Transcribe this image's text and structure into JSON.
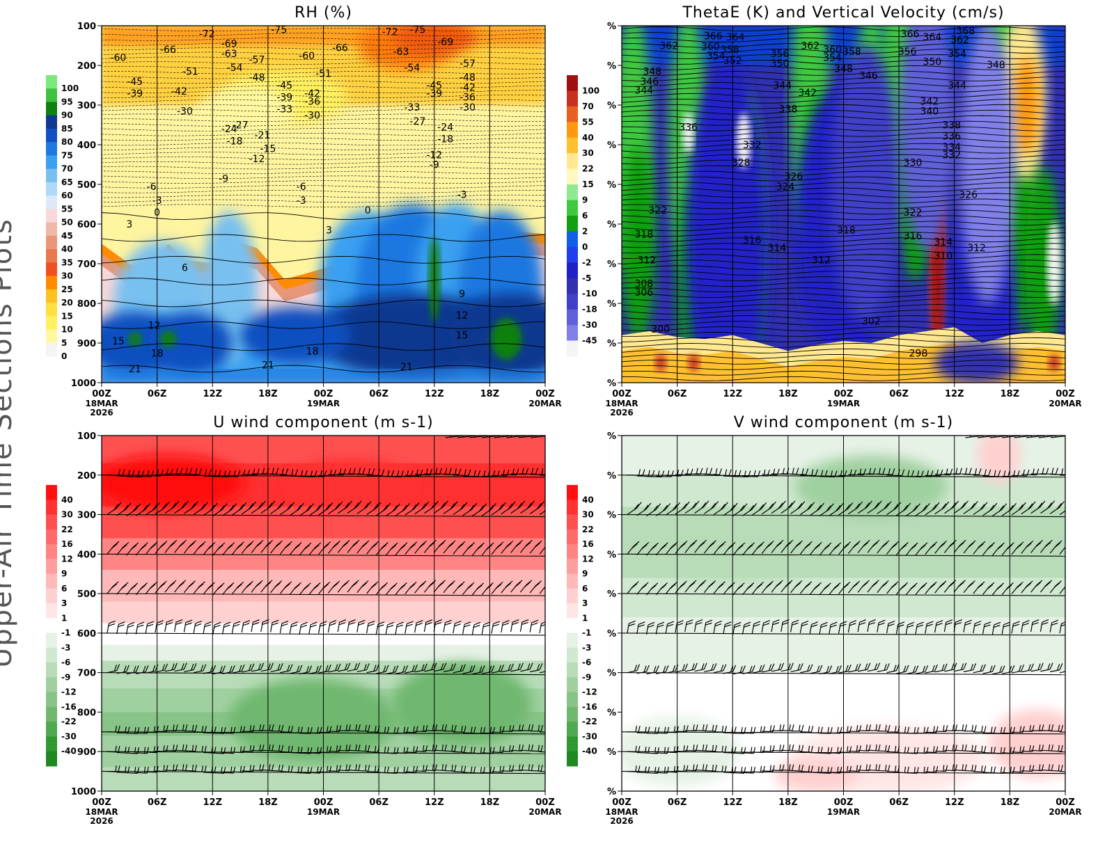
{
  "figure": {
    "side_title": "Upper-Air Time Sections Plots",
    "time_ticks": [
      "00Z",
      "06Z",
      "12Z",
      "18Z",
      "00Z",
      "06Z",
      "12Z",
      "18Z",
      "00Z"
    ],
    "date_labels": [
      {
        "tick": 0,
        "lines": [
          "18MAR",
          "2026"
        ]
      },
      {
        "tick": 4,
        "lines": [
          "19MAR"
        ]
      },
      {
        "tick": 8,
        "lines": [
          "20MAR"
        ]
      }
    ]
  },
  "chart_data": [
    {
      "id": "rh",
      "type": "heatmap",
      "title": "RH (%)",
      "y_ticks": [
        "100",
        "200",
        "300",
        "400",
        "500",
        "600",
        "700",
        "800",
        "900",
        "1000"
      ],
      "ylim": [
        100,
        1000
      ],
      "colorbar": {
        "labels": [
          "100",
          "95",
          "90",
          "85",
          "80",
          "75",
          "70",
          "65",
          "60",
          "55",
          "50",
          "45",
          "40",
          "35",
          "30",
          "25",
          "20",
          "15",
          "10",
          "5",
          "0"
        ],
        "colors": [
          "#7de87d",
          "#40c040",
          "#108010",
          "#103890",
          "#1050c0",
          "#1f78e0",
          "#3aa0f0",
          "#78c0f0",
          "#b0d8f8",
          "#dce8f8",
          "#f8d8d8",
          "#f0b8a8",
          "#e89878",
          "#e87850",
          "#f05020",
          "#ff8c00",
          "#ffc020",
          "#ffe040",
          "#fff060",
          "#fff8a0",
          "#f4f4f4"
        ]
      },
      "contour_labels": [
        {
          "t": 0.3,
          "p": 180,
          "v": "-60"
        },
        {
          "t": 1.2,
          "p": 160,
          "v": "-66"
        },
        {
          "t": 1.9,
          "p": 120,
          "v": "-72"
        },
        {
          "t": 2.3,
          "p": 145,
          "v": "-69"
        },
        {
          "t": 3.2,
          "p": 110,
          "v": "-75"
        },
        {
          "t": 2.3,
          "p": 170,
          "v": "-63"
        },
        {
          "t": 2.8,
          "p": 185,
          "v": "-57"
        },
        {
          "t": 2.4,
          "p": 205,
          "v": "-54"
        },
        {
          "t": 2.8,
          "p": 230,
          "v": "-48"
        },
        {
          "t": 1.6,
          "p": 215,
          "v": "-51"
        },
        {
          "t": 0.6,
          "p": 240,
          "v": "-45"
        },
        {
          "t": 0.6,
          "p": 270,
          "v": "-39"
        },
        {
          "t": 1.4,
          "p": 265,
          "v": "-42"
        },
        {
          "t": 1.5,
          "p": 315,
          "v": "-30"
        },
        {
          "t": 3.3,
          "p": 250,
          "v": "-45"
        },
        {
          "t": 3.3,
          "p": 280,
          "v": "-39"
        },
        {
          "t": 3.3,
          "p": 310,
          "v": "-33"
        },
        {
          "t": 3.8,
          "p": 290,
          "v": "-36"
        },
        {
          "t": 3.8,
          "p": 270,
          "v": "-42"
        },
        {
          "t": 3.8,
          "p": 325,
          "v": "-30"
        },
        {
          "t": 3.7,
          "p": 175,
          "v": "-60"
        },
        {
          "t": 4.0,
          "p": 220,
          "v": "-51"
        },
        {
          "t": 4.3,
          "p": 155,
          "v": "-66"
        },
        {
          "t": 2.5,
          "p": 350,
          "v": "-27"
        },
        {
          "t": 2.3,
          "p": 360,
          "v": "-24"
        },
        {
          "t": 2.9,
          "p": 375,
          "v": "-21"
        },
        {
          "t": 2.4,
          "p": 390,
          "v": "-18"
        },
        {
          "t": 3.0,
          "p": 410,
          "v": "-15"
        },
        {
          "t": 2.8,
          "p": 435,
          "v": "-12"
        },
        {
          "t": 2.2,
          "p": 485,
          "v": "-9"
        },
        {
          "t": 3.6,
          "p": 505,
          "v": "-6"
        },
        {
          "t": 3.6,
          "p": 540,
          "v": "-3"
        },
        {
          "t": 0.9,
          "p": 505,
          "v": "-6"
        },
        {
          "t": 1.0,
          "p": 540,
          "v": "-3"
        },
        {
          "t": 1.0,
          "p": 570,
          "v": "0"
        },
        {
          "t": 0.5,
          "p": 600,
          "v": "3"
        },
        {
          "t": 5.2,
          "p": 115,
          "v": "-72"
        },
        {
          "t": 5.7,
          "p": 110,
          "v": "-75"
        },
        {
          "t": 5.4,
          "p": 165,
          "v": "-63"
        },
        {
          "t": 6.2,
          "p": 140,
          "v": "-69"
        },
        {
          "t": 5.6,
          "p": 205,
          "v": "-54"
        },
        {
          "t": 6.6,
          "p": 195,
          "v": "-57"
        },
        {
          "t": 6.6,
          "p": 230,
          "v": "-48"
        },
        {
          "t": 6.0,
          "p": 250,
          "v": "-45"
        },
        {
          "t": 6.6,
          "p": 255,
          "v": "-42"
        },
        {
          "t": 6.0,
          "p": 270,
          "v": "-39"
        },
        {
          "t": 6.6,
          "p": 280,
          "v": "-36"
        },
        {
          "t": 5.6,
          "p": 305,
          "v": "-33"
        },
        {
          "t": 6.6,
          "p": 305,
          "v": "-30"
        },
        {
          "t": 5.7,
          "p": 340,
          "v": "-27"
        },
        {
          "t": 6.2,
          "p": 355,
          "v": "-24"
        },
        {
          "t": 6.2,
          "p": 385,
          "v": "-18"
        },
        {
          "t": 6.0,
          "p": 425,
          "v": "-12"
        },
        {
          "t": 6.0,
          "p": 450,
          "v": "-9"
        },
        {
          "t": 6.5,
          "p": 525,
          "v": "-3"
        },
        {
          "t": 4.8,
          "p": 565,
          "v": "0"
        },
        {
          "t": 4.1,
          "p": 615,
          "v": "3"
        },
        {
          "t": 1.5,
          "p": 710,
          "v": "6"
        },
        {
          "t": 6.5,
          "p": 775,
          "v": "9"
        },
        {
          "t": 6.5,
          "p": 830,
          "v": "12"
        },
        {
          "t": 6.5,
          "p": 880,
          "v": "15"
        },
        {
          "t": 0.95,
          "p": 855,
          "v": "12"
        },
        {
          "t": 0.3,
          "p": 895,
          "v": "15"
        },
        {
          "t": 1.0,
          "p": 925,
          "v": "18"
        },
        {
          "t": 0.6,
          "p": 965,
          "v": "21"
        },
        {
          "t": 3.0,
          "p": 955,
          "v": "21"
        },
        {
          "t": 3.8,
          "p": 920,
          "v": "18"
        },
        {
          "t": 5.5,
          "p": 960,
          "v": "21"
        }
      ]
    },
    {
      "id": "thetae",
      "type": "heatmap",
      "title": "ThetaE (K) and Vertical Velocity (cm/s)",
      "y_ticks": [
        "%",
        "%",
        "%",
        "%",
        "%",
        "%",
        "%",
        "%",
        "%",
        "%"
      ],
      "ylim": [
        100,
        1000
      ],
      "colorbar": {
        "labels": [
          "100",
          "70",
          "55",
          "40",
          "30",
          "22",
          "15",
          "9",
          "6",
          "2",
          "0",
          "-2",
          "-5",
          "-10",
          "-18",
          "-30",
          "-45"
        ],
        "colors": [
          "#a01010",
          "#c83020",
          "#e86020",
          "#ff9810",
          "#ffc030",
          "#ffe890",
          "#fff8c0",
          "#90e890",
          "#40c840",
          "#10a010",
          "#1060e8",
          "#2040f0",
          "#2020c8",
          "#3030b0",
          "#4040c8",
          "#6060d8",
          "#8080e8",
          "#f4f4f4"
        ]
      },
      "contour_labels": [
        {
          "t": 0.85,
          "p": 150,
          "v": "362"
        },
        {
          "t": 1.65,
          "p": 125,
          "v": "366"
        },
        {
          "t": 2.05,
          "p": 128,
          "v": "364"
        },
        {
          "t": 1.6,
          "p": 152,
          "v": "360"
        },
        {
          "t": 1.7,
          "p": 175,
          "v": "354"
        },
        {
          "t": 1.95,
          "p": 160,
          "v": "358"
        },
        {
          "t": 2.0,
          "p": 188,
          "v": "352"
        },
        {
          "t": 0.55,
          "p": 215,
          "v": "348"
        },
        {
          "t": 0.5,
          "p": 240,
          "v": "346"
        },
        {
          "t": 0.4,
          "p": 262,
          "v": "344"
        },
        {
          "t": 2.85,
          "p": 170,
          "v": "356"
        },
        {
          "t": 2.85,
          "p": 195,
          "v": "350"
        },
        {
          "t": 3.4,
          "p": 150,
          "v": "362"
        },
        {
          "t": 3.8,
          "p": 160,
          "v": "360"
        },
        {
          "t": 3.8,
          "p": 180,
          "v": "354"
        },
        {
          "t": 4.15,
          "p": 165,
          "v": "358"
        },
        {
          "t": 4.0,
          "p": 208,
          "v": "348"
        },
        {
          "t": 4.45,
          "p": 225,
          "v": "346"
        },
        {
          "t": 2.9,
          "p": 250,
          "v": "344"
        },
        {
          "t": 3.35,
          "p": 268,
          "v": "342"
        },
        {
          "t": 3.0,
          "p": 310,
          "v": "338"
        },
        {
          "t": 1.2,
          "p": 355,
          "v": "336"
        },
        {
          "t": 2.35,
          "p": 400,
          "v": "332"
        },
        {
          "t": 2.15,
          "p": 445,
          "v": "328"
        },
        {
          "t": 3.1,
          "p": 480,
          "v": "326"
        },
        {
          "t": 2.95,
          "p": 505,
          "v": "324"
        },
        {
          "t": 0.65,
          "p": 565,
          "v": "322"
        },
        {
          "t": 0.4,
          "p": 625,
          "v": "318"
        },
        {
          "t": 2.35,
          "p": 640,
          "v": "316"
        },
        {
          "t": 2.8,
          "p": 660,
          "v": "314"
        },
        {
          "t": 3.6,
          "p": 690,
          "v": "312"
        },
        {
          "t": 0.45,
          "p": 690,
          "v": "312"
        },
        {
          "t": 0.4,
          "p": 750,
          "v": "308"
        },
        {
          "t": 0.4,
          "p": 772,
          "v": "306"
        },
        {
          "t": 0.7,
          "p": 865,
          "v": "300"
        },
        {
          "t": 4.05,
          "p": 615,
          "v": "318"
        },
        {
          "t": 5.25,
          "p": 445,
          "v": "330"
        },
        {
          "t": 5.25,
          "p": 570,
          "v": "322"
        },
        {
          "t": 5.25,
          "p": 630,
          "v": "316"
        },
        {
          "t": 5.8,
          "p": 645,
          "v": "314"
        },
        {
          "t": 5.8,
          "p": 680,
          "v": "310"
        },
        {
          "t": 6.4,
          "p": 660,
          "v": "312"
        },
        {
          "t": 4.5,
          "p": 845,
          "v": "302"
        },
        {
          "t": 5.35,
          "p": 925,
          "v": "298"
        },
        {
          "t": 5.2,
          "p": 120,
          "v": "366"
        },
        {
          "t": 5.6,
          "p": 128,
          "v": "364"
        },
        {
          "t": 6.2,
          "p": 112,
          "v": "368"
        },
        {
          "t": 6.1,
          "p": 135,
          "v": "362"
        },
        {
          "t": 5.15,
          "p": 165,
          "v": "356"
        },
        {
          "t": 6.05,
          "p": 170,
          "v": "354"
        },
        {
          "t": 5.6,
          "p": 190,
          "v": "350"
        },
        {
          "t": 6.75,
          "p": 198,
          "v": "348"
        },
        {
          "t": 6.05,
          "p": 250,
          "v": "344"
        },
        {
          "t": 5.55,
          "p": 290,
          "v": "342"
        },
        {
          "t": 5.55,
          "p": 315,
          "v": "340"
        },
        {
          "t": 5.95,
          "p": 350,
          "v": "338"
        },
        {
          "t": 5.95,
          "p": 378,
          "v": "336"
        },
        {
          "t": 5.95,
          "p": 405,
          "v": "334"
        },
        {
          "t": 5.95,
          "p": 425,
          "v": "332"
        },
        {
          "t": 6.25,
          "p": 525,
          "v": "326"
        }
      ]
    },
    {
      "id": "uwind",
      "type": "heatmap",
      "title": "U wind component (m s-1)",
      "y_ticks": [
        "100",
        "200",
        "300",
        "400",
        "500",
        "600",
        "700",
        "800",
        "900",
        "1000"
      ],
      "ylim": [
        100,
        1000
      ],
      "colorbar": {
        "labels": [
          "40",
          "30",
          "22",
          "16",
          "12",
          "9",
          "6",
          "3",
          "1",
          "-1",
          "-3",
          "-6",
          "-9",
          "-12",
          "-16",
          "-22",
          "-30",
          "-40"
        ],
        "colors": [
          "#ff1010",
          "#ff3030",
          "#ff5050",
          "#ff6a6a",
          "#ff8484",
          "#ff9e9e",
          "#ffb8b8",
          "#ffd0d0",
          "#ffe6e6",
          "#ffffff",
          "#e6f2e6",
          "#d0e8d0",
          "#b8dcb8",
          "#a0d0a0",
          "#88c488",
          "#70b870",
          "#50a850",
          "#309830",
          "#208820"
        ]
      },
      "barb_levels": [
        100,
        200,
        300,
        400,
        500,
        600,
        700,
        850,
        900,
        950
      ]
    },
    {
      "id": "vwind",
      "type": "heatmap",
      "title": "V wind component (m s-1)",
      "y_ticks": [
        "%",
        "%",
        "%",
        "%",
        "%",
        "%",
        "%",
        "%",
        "%",
        "%"
      ],
      "ylim": [
        100,
        1000
      ],
      "colorbar": {
        "labels": [
          "40",
          "30",
          "22",
          "16",
          "12",
          "9",
          "6",
          "3",
          "1",
          "-1",
          "-3",
          "-6",
          "-9",
          "-12",
          "-16",
          "-22",
          "-30",
          "-40"
        ],
        "colors": [
          "#ff1010",
          "#ff3030",
          "#ff5050",
          "#ff6a6a",
          "#ff8484",
          "#ff9e9e",
          "#ffb8b8",
          "#ffd0d0",
          "#ffe6e6",
          "#ffffff",
          "#e6f2e6",
          "#d0e8d0",
          "#b8dcb8",
          "#a0d0a0",
          "#88c488",
          "#70b870",
          "#50a850",
          "#309830",
          "#208820"
        ]
      },
      "barb_levels": [
        100,
        200,
        300,
        400,
        500,
        600,
        700,
        850,
        900,
        950
      ]
    }
  ]
}
